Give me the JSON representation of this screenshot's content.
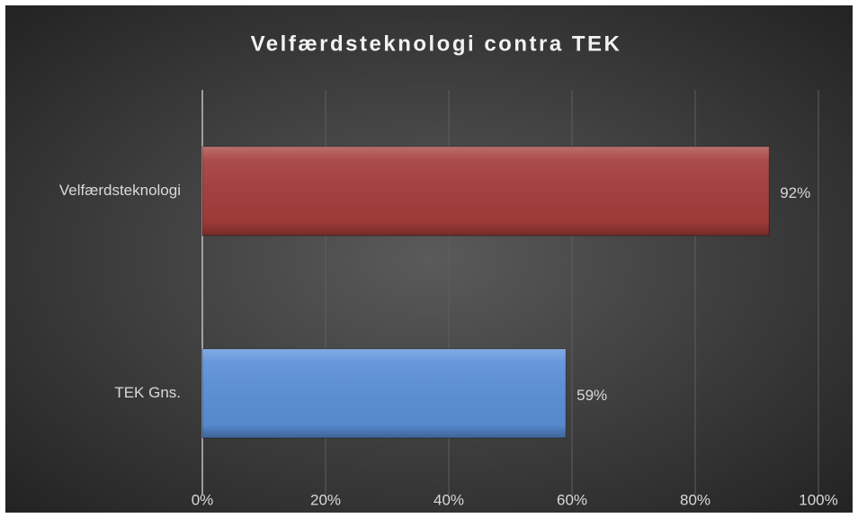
{
  "chart_data": {
    "type": "hbar",
    "title": "Velfærdsteknologi contra TEK",
    "categories": [
      "Velfærdsteknologi",
      "TEK Gns."
    ],
    "values": [
      92,
      59
    ],
    "value_labels": [
      "92%",
      "59%"
    ],
    "colors": [
      "#a43d3b",
      "#5a8fd8"
    ],
    "xlim": [
      0,
      100
    ],
    "xticks": [
      {
        "value": 0,
        "label": "0%"
      },
      {
        "value": 20,
        "label": "20%"
      },
      {
        "value": 40,
        "label": "40%"
      },
      {
        "value": 60,
        "label": "60%"
      },
      {
        "value": 80,
        "label": "80%"
      },
      {
        "value": 100,
        "label": "100%"
      }
    ],
    "grid": true
  }
}
